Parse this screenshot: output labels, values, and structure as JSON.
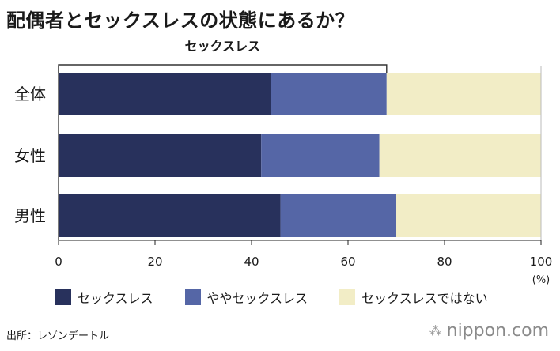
{
  "title": "配偶者とセックスレスの状態にあるか？",
  "source": "出所：レゾンデートル",
  "brand": {
    "icon": "nippon-logo-icon",
    "text": "nippon.com"
  },
  "colors": {
    "sexless": "#28315c",
    "somewhat": "#5566a6",
    "not": "#f2edc6",
    "text": "#1a1a1a"
  },
  "chart_data": {
    "type": "bar",
    "orientation": "horizontal",
    "stacked": true,
    "categories": [
      "全体",
      "女性",
      "男性"
    ],
    "series": [
      {
        "name": "セックスレス",
        "values": [
          44,
          42,
          46
        ],
        "color": "#28315c"
      },
      {
        "name": "ややセックスレス",
        "values": [
          24,
          24.5,
          24
        ],
        "color": "#5566a6"
      },
      {
        "name": "セックスレスではない",
        "values": [
          32,
          33.5,
          30
        ],
        "color": "#f2edc6"
      }
    ],
    "bracket_label": "セックスレス",
    "bracket_range": [
      0,
      68
    ],
    "xlim": [
      0,
      100
    ],
    "xticks": [
      "0",
      "20",
      "40",
      "60",
      "80",
      "100"
    ],
    "xunit": "(%)",
    "grid": false,
    "legend": "bottom"
  }
}
